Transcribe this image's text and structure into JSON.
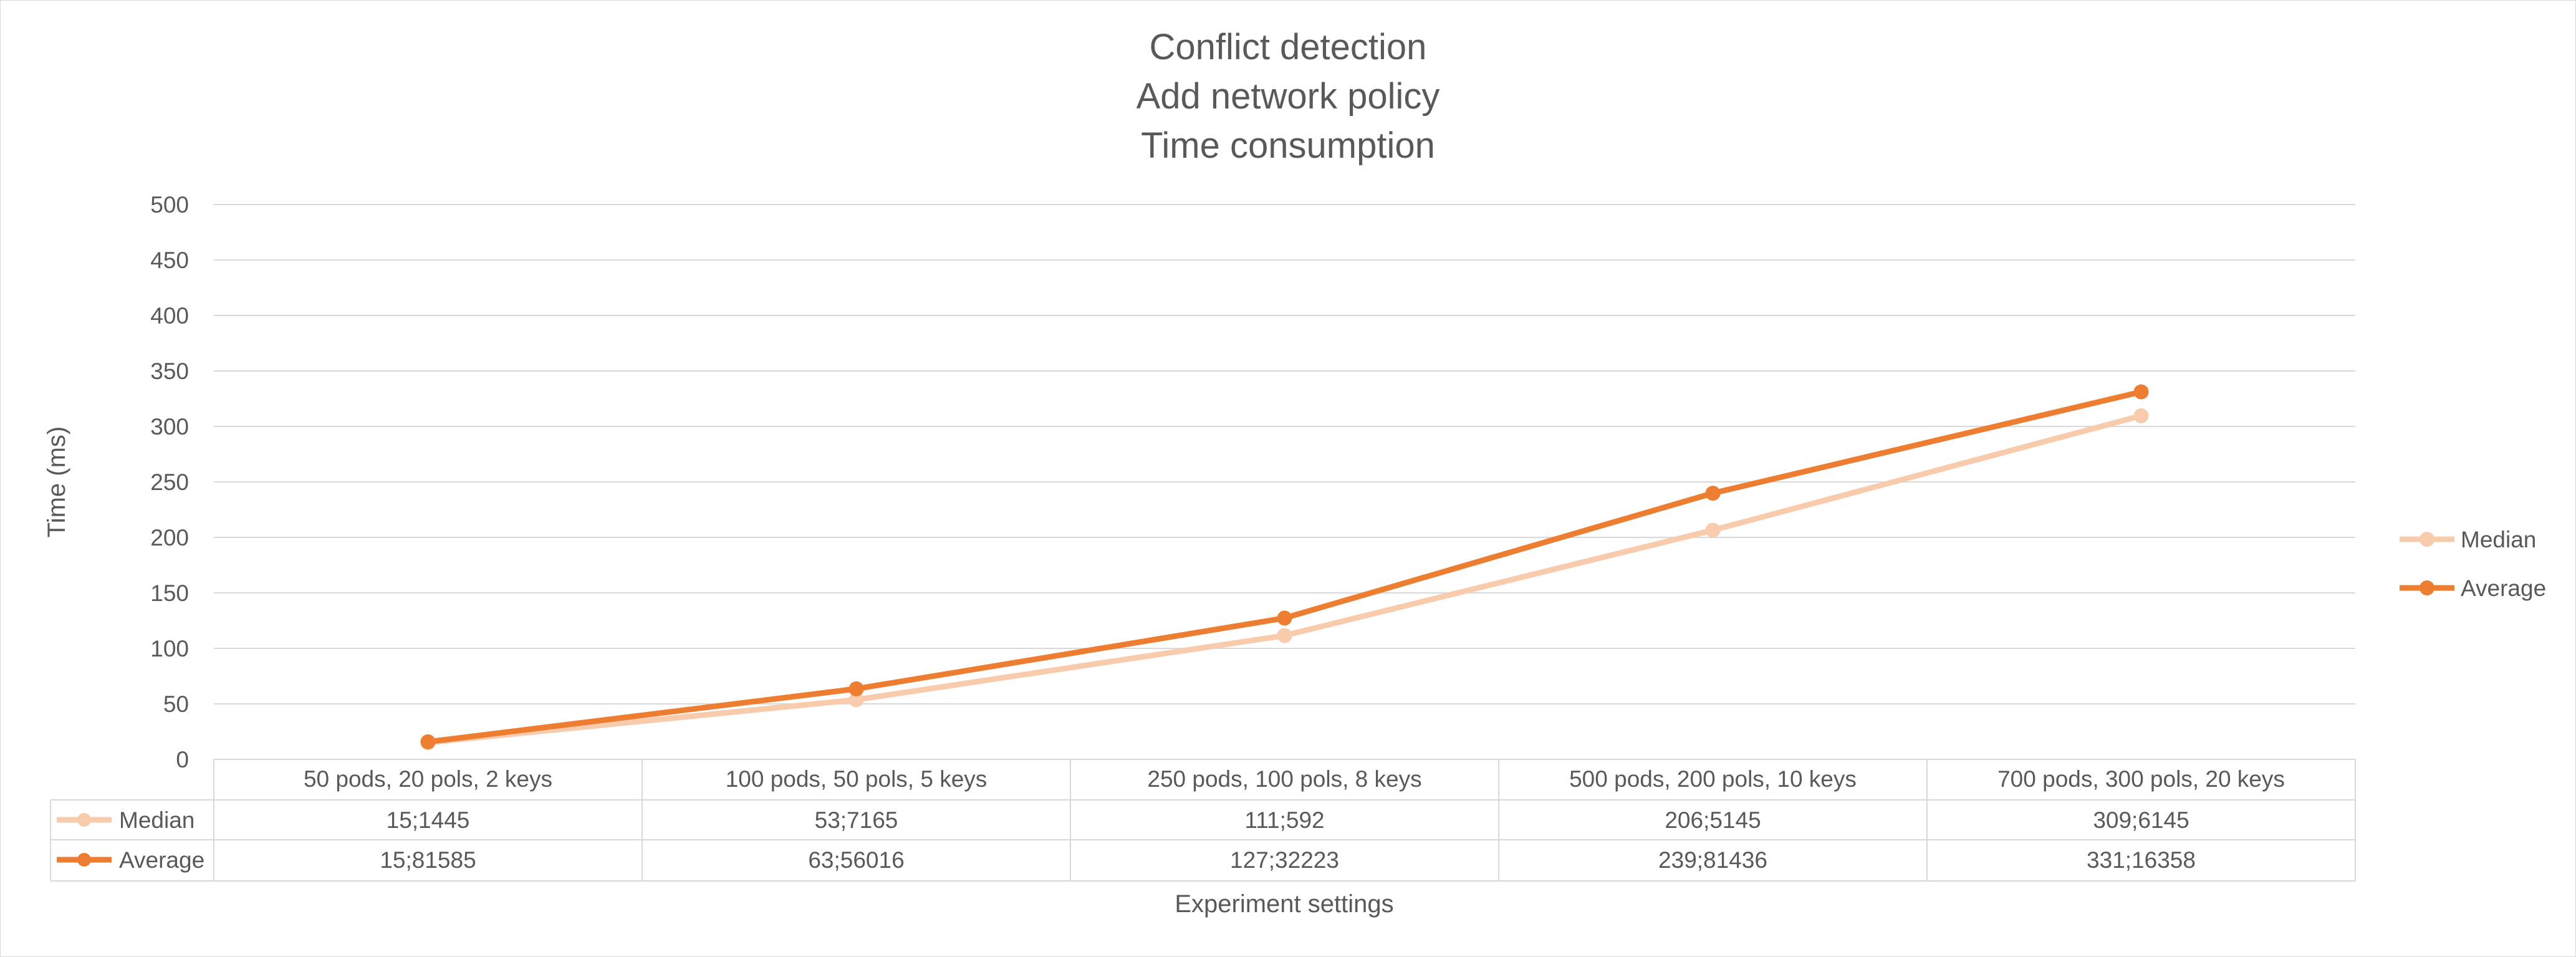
{
  "chart_data": {
    "type": "line",
    "title": [
      "Conflict detection",
      "Add network policy",
      "Time consumption"
    ],
    "xlabel": "Experiment settings",
    "ylabel": "Time (ms)",
    "ylim": [
      0,
      500
    ],
    "yticks": [
      "0",
      "50",
      "100",
      "150",
      "200",
      "250",
      "300",
      "350",
      "400",
      "450",
      "500"
    ],
    "grid": true,
    "legend_position": "right",
    "categories": [
      "50 pods, 20 pols, 2 keys",
      "100 pods, 50 pols, 5 keys",
      "250 pods, 100 pols, 8 keys",
      "500 pods, 200 pols, 10 keys",
      "700 pods, 300 pols, 20 keys"
    ],
    "series": [
      {
        "name": "Median",
        "color": "#f8cbad",
        "values": [
          15.1445,
          53.7165,
          111.592,
          206.5145,
          309.6145
        ],
        "labels": [
          "15;1445",
          "53;7165",
          "111;592",
          "206;5145",
          "309;6145"
        ]
      },
      {
        "name": "Average",
        "color": "#ed7d31",
        "values": [
          15.81585,
          63.56016,
          127.32223,
          239.81436,
          331.16358
        ],
        "labels": [
          "15;81585",
          "63;56016",
          "127;32223",
          "239;81436",
          "331;16358"
        ]
      }
    ]
  }
}
